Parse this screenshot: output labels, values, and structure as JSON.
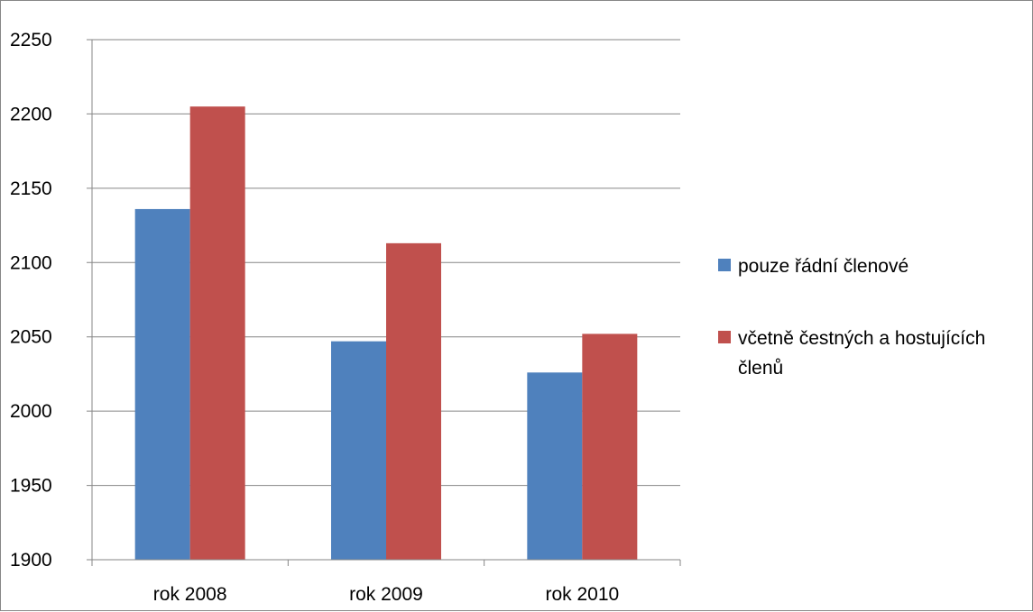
{
  "chart_data": {
    "type": "bar",
    "categories": [
      "rok 2008",
      "rok 2009",
      "rok 2010"
    ],
    "series": [
      {
        "name": "pouze řádní členové",
        "values": [
          2136,
          2047,
          2026
        ],
        "color": "#4F81BD"
      },
      {
        "name": "včetně čestných a hostujících členů",
        "values": [
          2205,
          2113,
          2052
        ],
        "color": "#C0504D"
      }
    ],
    "ylim": [
      1900,
      2250
    ],
    "yticks": [
      1900,
      1950,
      2000,
      2050,
      2100,
      2150,
      2200,
      2250
    ],
    "grid": true,
    "legend": {
      "position": "right",
      "items": [
        {
          "lines": [
            "pouze řádní členové"
          ]
        },
        {
          "lines": [
            "včetně čestných a hostujících",
            "členů"
          ]
        }
      ]
    }
  }
}
